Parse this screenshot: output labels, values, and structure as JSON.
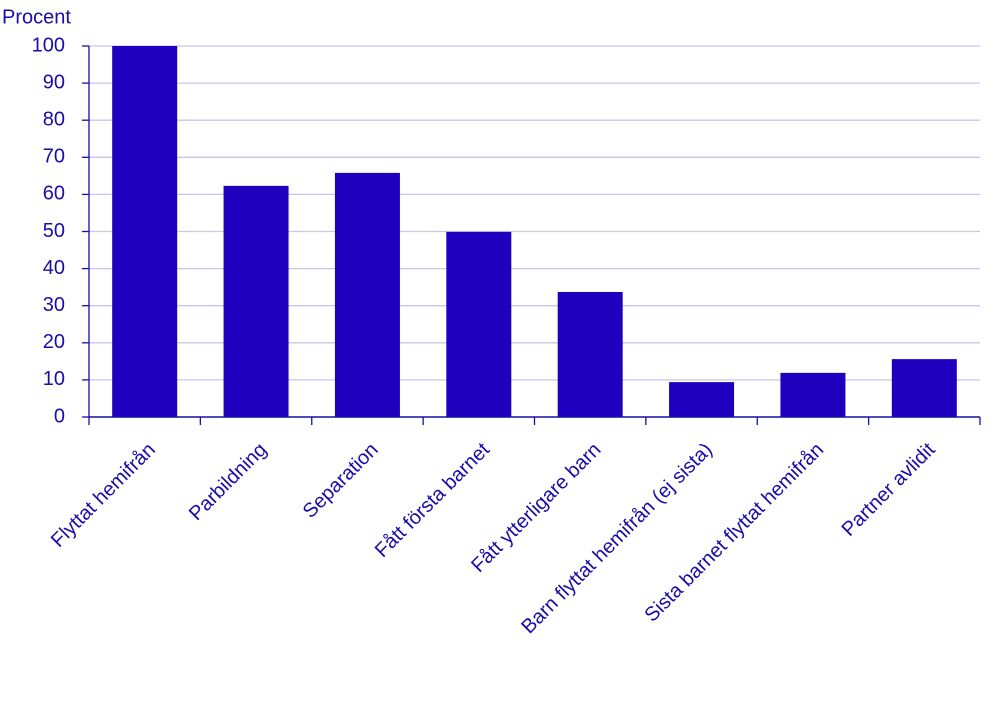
{
  "chart_data": {
    "type": "bar",
    "y_label": "Procent",
    "categories": [
      "Flyttat hemifrån",
      "Parbildning",
      "Separation",
      "Fått första barnet",
      "Fått ytterligare barn",
      "Barn flyttat hemifrån (ej sista)",
      "Sista barnet flyttat hemifrån",
      "Partner avlidit"
    ],
    "values": [
      100,
      62.3,
      65.8,
      49.9,
      33.7,
      9.4,
      11.9,
      15.6
    ],
    "color": "#1e00be",
    "ylim": [
      0,
      100
    ],
    "yticks": [
      0,
      10,
      20,
      30,
      40,
      50,
      60,
      70,
      80,
      90,
      100
    ],
    "grid": true
  }
}
